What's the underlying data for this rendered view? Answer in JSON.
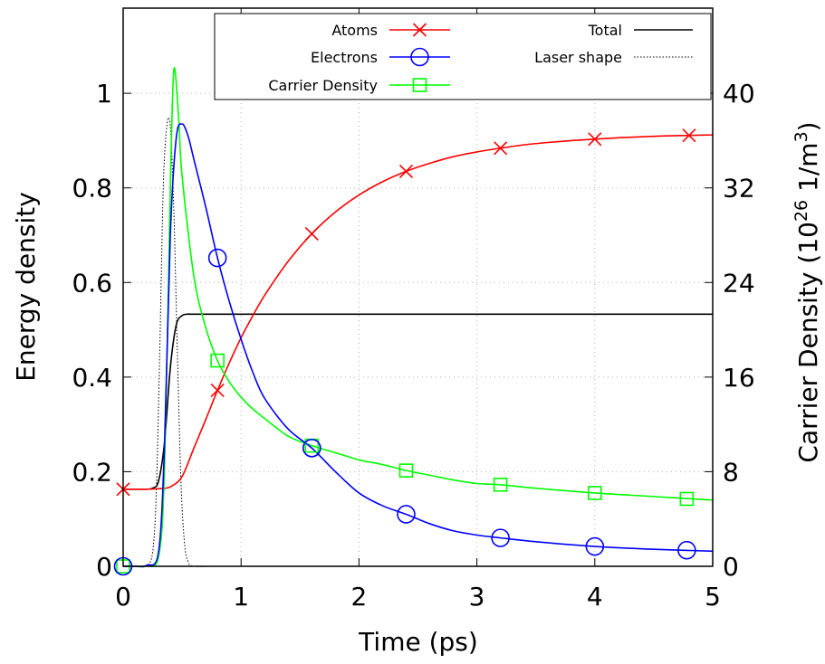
{
  "chart_data": {
    "type": "line",
    "xlabel": "Time (ps)",
    "ylabel": "Energy density",
    "y2label": {
      "prefix": "Carrier Density (10",
      "exponent": "26",
      "middle": " 1/m",
      "exponent2": "3",
      "suffix": ")"
    },
    "xlim": [
      0,
      5
    ],
    "ylim": [
      0,
      1.18
    ],
    "y2lim": [
      0,
      47.2
    ],
    "xticks": [
      0,
      1,
      2,
      3,
      4,
      5
    ],
    "xtick_labels": [
      "0",
      "1",
      "2",
      "3",
      "4",
      "5"
    ],
    "yticks": [
      0,
      0.2,
      0.4,
      0.6,
      0.8,
      1
    ],
    "ytick_labels": [
      "0",
      "0.2",
      "0.4",
      "0.6",
      "0.8",
      "1"
    ],
    "y2ticks": [
      0,
      8,
      16,
      24,
      32,
      40
    ],
    "y2tick_labels": [
      "0",
      "8",
      "16",
      "24",
      "32",
      "40"
    ],
    "grid": true,
    "legend_position": "top-right",
    "series": [
      {
        "name": "Atoms",
        "color": "#ff0000",
        "marker": "x",
        "axis": "y",
        "x": [
          0,
          0.1,
          0.2,
          0.3,
          0.4,
          0.5,
          0.6,
          0.7,
          0.8,
          0.9,
          1.0,
          1.1,
          1.2,
          1.4,
          1.6,
          1.8,
          2.0,
          2.2,
          2.4,
          2.6,
          2.8,
          3.0,
          3.2,
          3.4,
          3.6,
          3.8,
          4.0,
          4.2,
          4.4,
          4.6,
          4.8,
          5.0
        ],
        "y": [
          0.163,
          0.163,
          0.163,
          0.164,
          0.168,
          0.19,
          0.25,
          0.31,
          0.372,
          0.43,
          0.483,
          0.53,
          0.573,
          0.645,
          0.703,
          0.749,
          0.785,
          0.813,
          0.835,
          0.852,
          0.866,
          0.876,
          0.884,
          0.891,
          0.896,
          0.9,
          0.903,
          0.906,
          0.908,
          0.91,
          0.911,
          0.912
        ],
        "marker_x": [
          0,
          0.8,
          1.6,
          2.4,
          3.2,
          4.0,
          4.8
        ],
        "marker_y": [
          0.163,
          0.372,
          0.703,
          0.835,
          0.884,
          0.903,
          0.911
        ]
      },
      {
        "name": "Electrons",
        "color": "#0000ff",
        "marker": "circle",
        "axis": "y",
        "x": [
          0,
          0.1,
          0.2,
          0.3,
          0.35,
          0.4,
          0.45,
          0.5,
          0.55,
          0.6,
          0.7,
          0.8,
          0.9,
          1.0,
          1.1,
          1.2,
          1.4,
          1.6,
          1.8,
          2.0,
          2.2,
          2.4,
          2.6,
          2.8,
          3.0,
          3.2,
          3.5,
          4.0,
          4.5,
          5.0
        ],
        "y": [
          0,
          0,
          0.002,
          0.03,
          0.25,
          0.7,
          0.905,
          0.935,
          0.91,
          0.86,
          0.76,
          0.652,
          0.56,
          0.48,
          0.41,
          0.355,
          0.29,
          0.25,
          0.2,
          0.155,
          0.128,
          0.11,
          0.09,
          0.075,
          0.066,
          0.06,
          0.052,
          0.042,
          0.036,
          0.032
        ],
        "marker_x": [
          0,
          0.8,
          1.6,
          2.4,
          3.2,
          4.0,
          4.78
        ],
        "marker_y": [
          0,
          0.652,
          0.25,
          0.11,
          0.06,
          0.042,
          0.034
        ]
      },
      {
        "name": "Carrier Density",
        "color": "#00ff00",
        "marker": "square",
        "axis": "y2",
        "x": [
          0,
          0.1,
          0.2,
          0.3,
          0.35,
          0.4,
          0.43,
          0.47,
          0.5,
          0.6,
          0.7,
          0.8,
          0.9,
          1.0,
          1.1,
          1.2,
          1.4,
          1.6,
          1.8,
          2.0,
          2.2,
          2.4,
          2.6,
          2.8,
          3.0,
          3.2,
          3.5,
          4.0,
          4.5,
          5.0
        ],
        "y": [
          0,
          0,
          0.04,
          0.8,
          8.0,
          32.0,
          42.0,
          38.0,
          33.0,
          24.5,
          20.2,
          17.4,
          15.6,
          14.3,
          13.3,
          12.5,
          11.0,
          10.2,
          9.6,
          9.0,
          8.6,
          8.1,
          7.7,
          7.3,
          7.0,
          6.9,
          6.6,
          6.2,
          5.9,
          5.6
        ],
        "marker_x": [
          0,
          0.8,
          1.6,
          2.4,
          3.2,
          4.0,
          4.78
        ],
        "marker_y": [
          0,
          17.4,
          10.2,
          8.1,
          6.9,
          6.2,
          5.7
        ]
      },
      {
        "name": "Total",
        "color": "#000000",
        "marker": "none",
        "axis": "y",
        "x": [
          0,
          0.1,
          0.2,
          0.25,
          0.3,
          0.35,
          0.4,
          0.45,
          0.5,
          0.55,
          0.6,
          1.0,
          2.0,
          3.0,
          4.0,
          5.0
        ],
        "y": [
          0.163,
          0.163,
          0.163,
          0.165,
          0.18,
          0.26,
          0.42,
          0.51,
          0.53,
          0.533,
          0.533,
          0.533,
          0.533,
          0.533,
          0.533,
          0.533
        ]
      },
      {
        "name": "Laser shape",
        "color": "#000000",
        "marker": "none",
        "dashed": true,
        "axis": "y",
        "x": [
          0,
          0.1,
          0.2,
          0.25,
          0.28,
          0.31,
          0.34,
          0.37,
          0.4,
          0.43,
          0.46,
          0.49,
          0.52,
          0.55,
          0.6,
          0.8,
          1.0
        ],
        "y": [
          0,
          0,
          0.001,
          0.03,
          0.15,
          0.45,
          0.8,
          0.93,
          0.93,
          0.75,
          0.45,
          0.18,
          0.05,
          0.01,
          0,
          0,
          0
        ]
      }
    ]
  }
}
